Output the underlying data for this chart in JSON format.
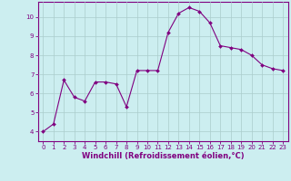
{
  "x": [
    0,
    1,
    2,
    3,
    4,
    5,
    6,
    7,
    8,
    9,
    10,
    11,
    12,
    13,
    14,
    15,
    16,
    17,
    18,
    19,
    20,
    21,
    22,
    23
  ],
  "y": [
    4.0,
    4.4,
    6.7,
    5.8,
    5.6,
    6.6,
    6.6,
    6.5,
    5.3,
    7.2,
    7.2,
    7.2,
    9.2,
    10.2,
    10.5,
    10.3,
    9.7,
    8.5,
    8.4,
    8.3,
    8.0,
    7.5,
    7.3,
    7.2
  ],
  "line_color": "#800080",
  "marker": "D",
  "marker_size": 2.0,
  "background_color": "#cceef0",
  "grid_color": "#aacccc",
  "xlabel": "Windchill (Refroidissement éolien,°C)",
  "xlabel_color": "#800080",
  "tick_color": "#800080",
  "spine_color": "#800080",
  "ylim": [
    3.5,
    10.8
  ],
  "xlim": [
    -0.5,
    23.5
  ],
  "yticks": [
    4,
    5,
    6,
    7,
    8,
    9,
    10
  ],
  "xticks": [
    0,
    1,
    2,
    3,
    4,
    5,
    6,
    7,
    8,
    9,
    10,
    11,
    12,
    13,
    14,
    15,
    16,
    17,
    18,
    19,
    20,
    21,
    22,
    23
  ],
  "tick_fontsize": 5.0,
  "label_fontsize": 6.0
}
